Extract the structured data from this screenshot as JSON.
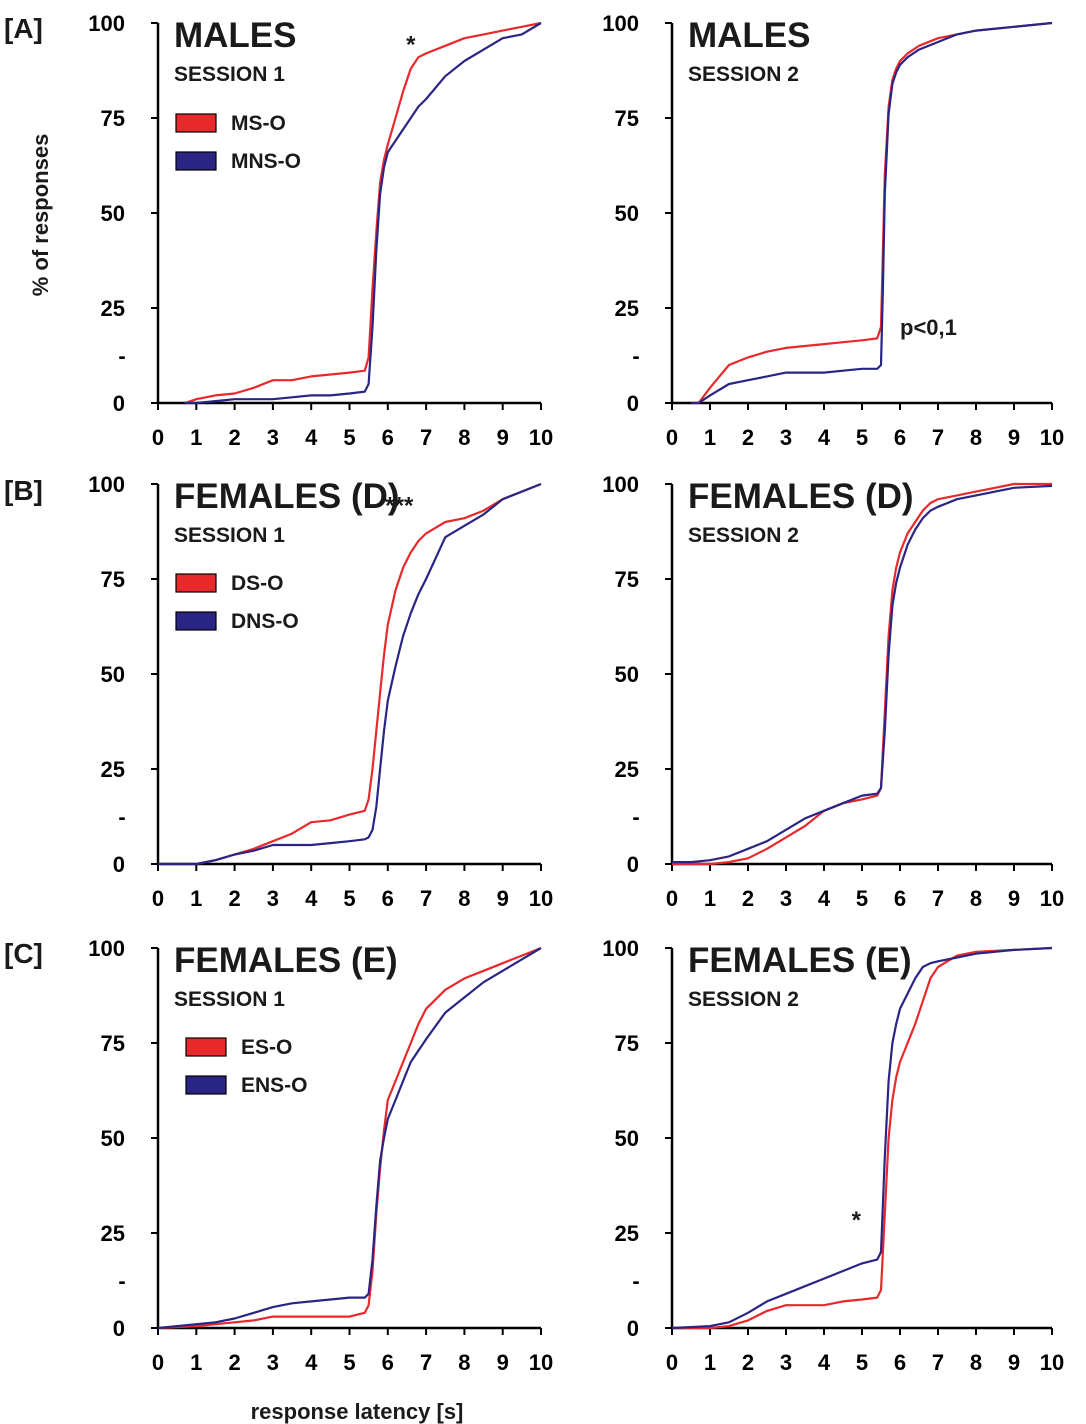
{
  "figure": {
    "row_labels": [
      "[A]",
      "[B]",
      "[C]"
    ],
    "ylabel": "% of responses",
    "xlabel": "response latency [s]",
    "y_minor_tick_label": "-"
  },
  "colors": {
    "red": "#e8292c",
    "blue": "#2a2585"
  },
  "chart_data": [
    {
      "type": "line",
      "title": "MALES",
      "subtitle": "SESSION 1",
      "xlabel": "response latency [s]",
      "ylabel": "% of responses",
      "xlim": [
        0,
        10
      ],
      "ylim": [
        0,
        100
      ],
      "xticks": [
        0,
        1,
        2,
        3,
        4,
        5,
        6,
        7,
        8,
        9,
        10
      ],
      "yticks": [
        0,
        25,
        50,
        75,
        100
      ],
      "grid": false,
      "legend_position": "top-left",
      "annotation": "*",
      "annotation_at": [
        6.6,
        97
      ],
      "series": [
        {
          "name": "MS-O",
          "color": "#e8292c",
          "x": [
            0.7,
            1.0,
            1.5,
            2.0,
            2.5,
            3.0,
            3.5,
            4.0,
            4.5,
            5.0,
            5.4,
            5.5,
            5.6,
            5.7,
            5.8,
            5.9,
            6.0,
            6.2,
            6.4,
            6.6,
            6.8,
            7.0,
            7.5,
            8.0,
            8.5,
            9.0,
            9.5,
            10.0
          ],
          "y": [
            0,
            1,
            2,
            2.5,
            4,
            6,
            6,
            7,
            7.5,
            8,
            8.5,
            12,
            30,
            45,
            58,
            64,
            68,
            75,
            82,
            88,
            91,
            92,
            94,
            96,
            97,
            98,
            99,
            100
          ]
        },
        {
          "name": "MNS-O",
          "color": "#2a2585",
          "x": [
            0.7,
            1.0,
            1.5,
            2.0,
            2.5,
            3.0,
            3.5,
            4.0,
            4.5,
            5.0,
            5.4,
            5.5,
            5.6,
            5.7,
            5.8,
            5.9,
            6.0,
            6.2,
            6.4,
            6.6,
            6.8,
            7.0,
            7.5,
            8.0,
            8.5,
            9.0,
            9.5,
            10.0
          ],
          "y": [
            0,
            0,
            0.5,
            1,
            1,
            1,
            1.5,
            2,
            2,
            2.5,
            3,
            5,
            20,
            40,
            55,
            62,
            66,
            69,
            72,
            75,
            78,
            80,
            86,
            90,
            93,
            96,
            97,
            100
          ]
        }
      ]
    },
    {
      "type": "line",
      "title": "MALES",
      "subtitle": "SESSION 2",
      "xlabel": "response latency [s]",
      "ylabel": "% of responses",
      "xlim": [
        0,
        10
      ],
      "ylim": [
        0,
        100
      ],
      "xticks": [
        0,
        1,
        2,
        3,
        4,
        5,
        6,
        7,
        8,
        9,
        10
      ],
      "yticks": [
        0,
        25,
        50,
        75,
        100
      ],
      "grid": false,
      "annotation": "p<0,1",
      "annotation_at": [
        6.0,
        20
      ],
      "series": [
        {
          "name": "MS-O",
          "color": "#e8292c",
          "x": [
            0.5,
            0.7,
            1.0,
            1.5,
            2.0,
            2.5,
            3.0,
            3.5,
            4.0,
            4.5,
            5.0,
            5.4,
            5.5,
            5.55,
            5.6,
            5.7,
            5.8,
            5.9,
            6.0,
            6.2,
            6.5,
            7.0,
            7.5,
            8.0,
            9.0,
            10.0
          ],
          "y": [
            0,
            0,
            4,
            10,
            12,
            13.5,
            14.5,
            15,
            15.5,
            16,
            16.5,
            17,
            20,
            40,
            60,
            78,
            85,
            88,
            90,
            92,
            94,
            96,
            97,
            98,
            99,
            100
          ]
        },
        {
          "name": "MNS-O",
          "color": "#2a2585",
          "x": [
            0.5,
            0.7,
            1.0,
            1.5,
            2.0,
            2.5,
            3.0,
            3.5,
            4.0,
            4.5,
            5.0,
            5.4,
            5.5,
            5.55,
            5.6,
            5.7,
            5.8,
            5.9,
            6.0,
            6.2,
            6.5,
            7.0,
            7.5,
            8.0,
            9.0,
            10.0
          ],
          "y": [
            0,
            0,
            2,
            5,
            6,
            7,
            8,
            8,
            8,
            8.5,
            9,
            9,
            10,
            30,
            55,
            76,
            84,
            87,
            89,
            91,
            93,
            95,
            97,
            98,
            99,
            100
          ]
        }
      ]
    },
    {
      "type": "line",
      "title": "FEMALES  (D)",
      "subtitle": "SESSION 1",
      "xlabel": "response latency [s]",
      "ylabel": "% of responses",
      "xlim": [
        0,
        10
      ],
      "ylim": [
        0,
        100
      ],
      "xticks": [
        0,
        1,
        2,
        3,
        4,
        5,
        6,
        7,
        8,
        9,
        10
      ],
      "yticks": [
        0,
        25,
        50,
        75,
        100
      ],
      "grid": false,
      "legend_position": "top-left",
      "annotation": "***",
      "annotation_at": [
        6.3,
        97
      ],
      "series": [
        {
          "name": "DS-O",
          "color": "#e8292c",
          "x": [
            0.0,
            1.0,
            1.5,
            2.0,
            2.5,
            3.0,
            3.5,
            4.0,
            4.5,
            5.0,
            5.4,
            5.5,
            5.6,
            5.7,
            5.8,
            5.9,
            6.0,
            6.2,
            6.4,
            6.6,
            6.8,
            7.0,
            7.5,
            8.0,
            8.5,
            9.0,
            9.5,
            10.0
          ],
          "y": [
            0,
            0,
            1,
            2.5,
            4,
            6,
            8,
            11,
            11.5,
            13,
            14,
            17,
            25,
            35,
            45,
            55,
            63,
            72,
            78,
            82,
            85,
            87,
            90,
            91,
            93,
            96,
            98,
            100
          ]
        },
        {
          "name": "DNS-O",
          "color": "#2a2585",
          "x": [
            0.0,
            1.0,
            1.5,
            2.0,
            2.5,
            3.0,
            3.5,
            4.0,
            4.5,
            5.0,
            5.4,
            5.5,
            5.6,
            5.7,
            5.8,
            5.9,
            6.0,
            6.2,
            6.4,
            6.6,
            6.8,
            7.0,
            7.5,
            8.0,
            8.5,
            9.0,
            9.5,
            10.0
          ],
          "y": [
            0,
            0,
            1,
            2.5,
            3.5,
            5,
            5,
            5,
            5.5,
            6,
            6.5,
            7,
            9,
            15,
            25,
            35,
            43,
            52,
            60,
            66,
            71,
            75,
            86,
            89,
            92,
            96,
            98,
            100
          ]
        }
      ]
    },
    {
      "type": "line",
      "title": "FEMALES (D)",
      "subtitle": "SESSION 2",
      "xlabel": "response latency [s]",
      "ylabel": "% of responses",
      "xlim": [
        0,
        10
      ],
      "ylim": [
        0,
        100
      ],
      "xticks": [
        0,
        1,
        2,
        3,
        4,
        5,
        6,
        7,
        8,
        9,
        10
      ],
      "yticks": [
        0,
        25,
        50,
        75,
        100
      ],
      "grid": false,
      "series": [
        {
          "name": "DS-O",
          "color": "#e8292c",
          "x": [
            0.0,
            1.0,
            1.5,
            2.0,
            2.5,
            3.0,
            3.5,
            4.0,
            4.5,
            5.0,
            5.4,
            5.5,
            5.6,
            5.7,
            5.8,
            5.9,
            6.0,
            6.2,
            6.4,
            6.6,
            6.8,
            7.0,
            7.5,
            8.0,
            8.5,
            9.0,
            9.5,
            10.0
          ],
          "y": [
            0,
            0,
            0.5,
            1.5,
            4,
            7,
            10,
            14,
            16,
            17,
            18,
            20,
            40,
            60,
            72,
            78,
            82,
            87,
            90,
            93,
            95,
            96,
            97,
            98,
            99,
            100,
            100,
            100
          ]
        },
        {
          "name": "DNS-O",
          "color": "#2a2585",
          "x": [
            0.0,
            0.5,
            1.0,
            1.5,
            2.0,
            2.5,
            3.0,
            3.5,
            4.0,
            4.5,
            5.0,
            5.4,
            5.5,
            5.6,
            5.7,
            5.8,
            5.9,
            6.0,
            6.2,
            6.4,
            6.6,
            6.8,
            7.0,
            7.5,
            8.0,
            9.0,
            10.0
          ],
          "y": [
            0.5,
            0.5,
            1,
            2,
            4,
            6,
            9,
            12,
            14,
            16,
            18,
            18.5,
            20,
            35,
            55,
            68,
            74,
            78,
            84,
            88,
            91,
            93,
            94,
            96,
            97,
            99,
            99.5
          ]
        }
      ]
    },
    {
      "type": "line",
      "title": "FEMALES (E)",
      "subtitle": "SESSION 1",
      "xlabel": "response latency [s]",
      "ylabel": "% of responses",
      "xlim": [
        0,
        10
      ],
      "ylim": [
        0,
        100
      ],
      "xticks": [
        0,
        1,
        2,
        3,
        4,
        5,
        6,
        7,
        8,
        9,
        10
      ],
      "yticks": [
        0,
        25,
        50,
        75,
        100
      ],
      "grid": false,
      "legend_position": "top-left",
      "series": [
        {
          "name": "ES-O",
          "color": "#e8292c",
          "x": [
            0.0,
            1.0,
            1.5,
            2.0,
            2.5,
            3.0,
            3.5,
            4.0,
            4.5,
            5.0,
            5.4,
            5.5,
            5.6,
            5.7,
            5.8,
            5.9,
            6.0,
            6.2,
            6.4,
            6.6,
            6.8,
            7.0,
            7.5,
            8.0,
            8.5,
            9.0,
            9.5,
            10.0
          ],
          "y": [
            0,
            0.5,
            1,
            1.5,
            2,
            3,
            3,
            3,
            3,
            3,
            4,
            6,
            15,
            30,
            42,
            52,
            60,
            65,
            70,
            75,
            80,
            84,
            89,
            92,
            94,
            96,
            98,
            100
          ]
        },
        {
          "name": "ENS-O",
          "color": "#2a2585",
          "x": [
            0.0,
            1.0,
            1.5,
            2.0,
            2.5,
            3.0,
            3.5,
            4.0,
            4.5,
            5.0,
            5.4,
            5.5,
            5.6,
            5.7,
            5.8,
            5.9,
            6.0,
            6.2,
            6.4,
            6.6,
            6.8,
            7.0,
            7.5,
            8.0,
            8.5,
            9.0,
            9.5,
            10.0
          ],
          "y": [
            0,
            1,
            1.5,
            2.5,
            4,
            5.5,
            6.5,
            7,
            7.5,
            8,
            8,
            9,
            18,
            32,
            44,
            50,
            55,
            60,
            65,
            70,
            73,
            76,
            83,
            87,
            91,
            94,
            97,
            100
          ]
        }
      ]
    },
    {
      "type": "line",
      "title": "FEMALES (E)",
      "subtitle": "SESSION 2",
      "xlabel": "response latency [s]",
      "ylabel": "% of responses",
      "xlim": [
        0,
        10
      ],
      "ylim": [
        0,
        100
      ],
      "xticks": [
        0,
        1,
        2,
        3,
        4,
        5,
        6,
        7,
        8,
        9,
        10
      ],
      "yticks": [
        0,
        25,
        50,
        75,
        100
      ],
      "grid": false,
      "annotation": "*",
      "annotation_at": [
        4.85,
        31
      ],
      "series": [
        {
          "name": "ES-O",
          "color": "#e8292c",
          "x": [
            0.0,
            1.0,
            1.5,
            2.0,
            2.5,
            3.0,
            3.5,
            4.0,
            4.5,
            5.0,
            5.4,
            5.5,
            5.6,
            5.7,
            5.8,
            5.9,
            6.0,
            6.2,
            6.4,
            6.6,
            6.8,
            7.0,
            7.5,
            8.0,
            9.0,
            10.0
          ],
          "y": [
            0,
            0,
            0.5,
            2,
            4.5,
            6,
            6,
            6,
            7,
            7.5,
            8,
            10,
            30,
            50,
            60,
            66,
            70,
            75,
            80,
            86,
            92,
            95,
            98,
            99,
            99.5,
            100
          ]
        },
        {
          "name": "ENS-O",
          "color": "#2a2585",
          "x": [
            0.0,
            1.0,
            1.5,
            2.0,
            2.5,
            3.0,
            3.5,
            4.0,
            4.5,
            5.0,
            5.4,
            5.5,
            5.6,
            5.7,
            5.8,
            5.9,
            6.0,
            6.2,
            6.4,
            6.6,
            6.8,
            7.0,
            7.5,
            8.0,
            9.0,
            10.0
          ],
          "y": [
            0,
            0.5,
            1.5,
            4,
            7,
            9,
            11,
            13,
            15,
            17,
            18,
            20,
            45,
            65,
            75,
            80,
            84,
            88,
            92,
            95,
            96,
            96.5,
            97.5,
            98.5,
            99.5,
            100
          ]
        }
      ]
    }
  ]
}
